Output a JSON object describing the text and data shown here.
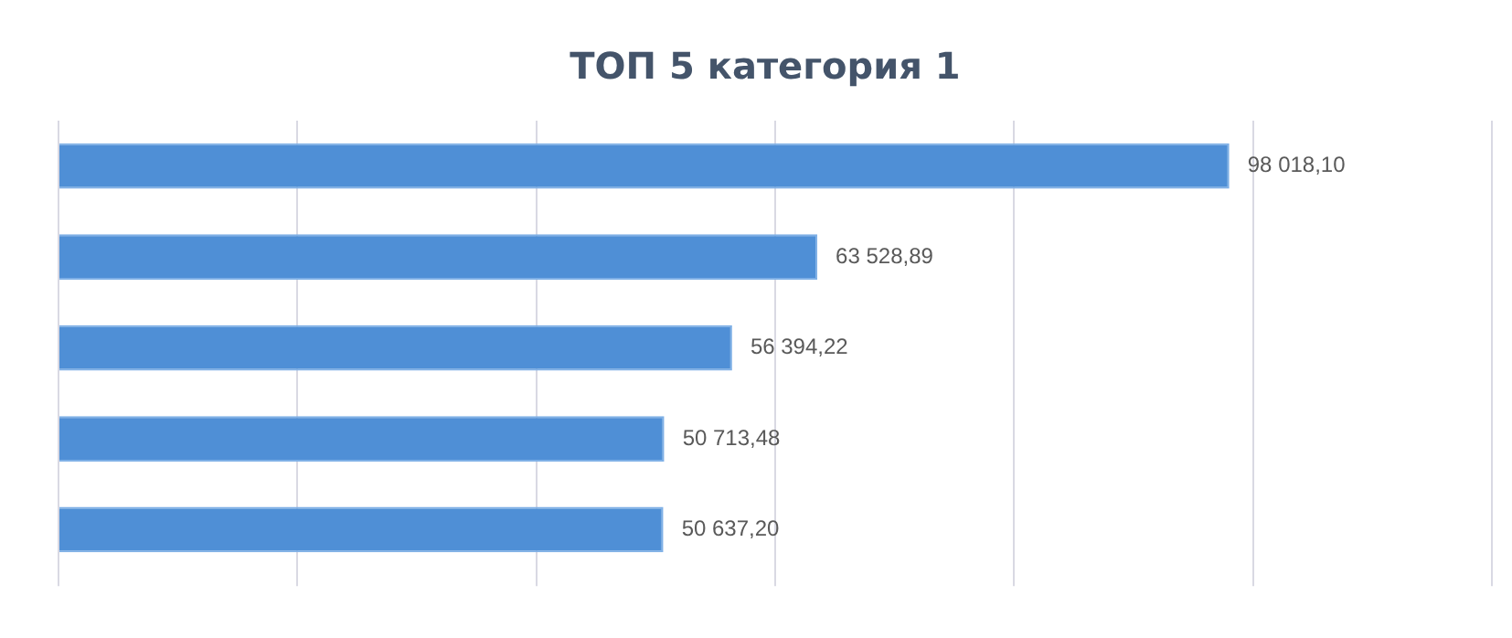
{
  "chart_data": {
    "type": "bar",
    "orientation": "horizontal",
    "title": "ТОП 5 категория 1",
    "categories": [
      null,
      null,
      null,
      null,
      null
    ],
    "values": [
      98018.1,
      63528.89,
      56394.22,
      50713.48,
      50637.2
    ],
    "value_labels": [
      "98 018,10",
      "63 528,89",
      "56 394,22",
      "50 713,48",
      "50 637,20"
    ],
    "color": "#4f8fd6",
    "xlim": [
      0,
      120000
    ],
    "xticks": [
      {
        "value": 0,
        "label": null
      },
      {
        "value": 20000,
        "label": null
      },
      {
        "value": 40000,
        "label": null
      },
      {
        "value": 60000,
        "label": null
      },
      {
        "value": 80000,
        "label": null
      },
      {
        "value": 100000,
        "label": null
      },
      {
        "value": 120000,
        "label": null
      }
    ],
    "grid": "x",
    "legend": false
  }
}
